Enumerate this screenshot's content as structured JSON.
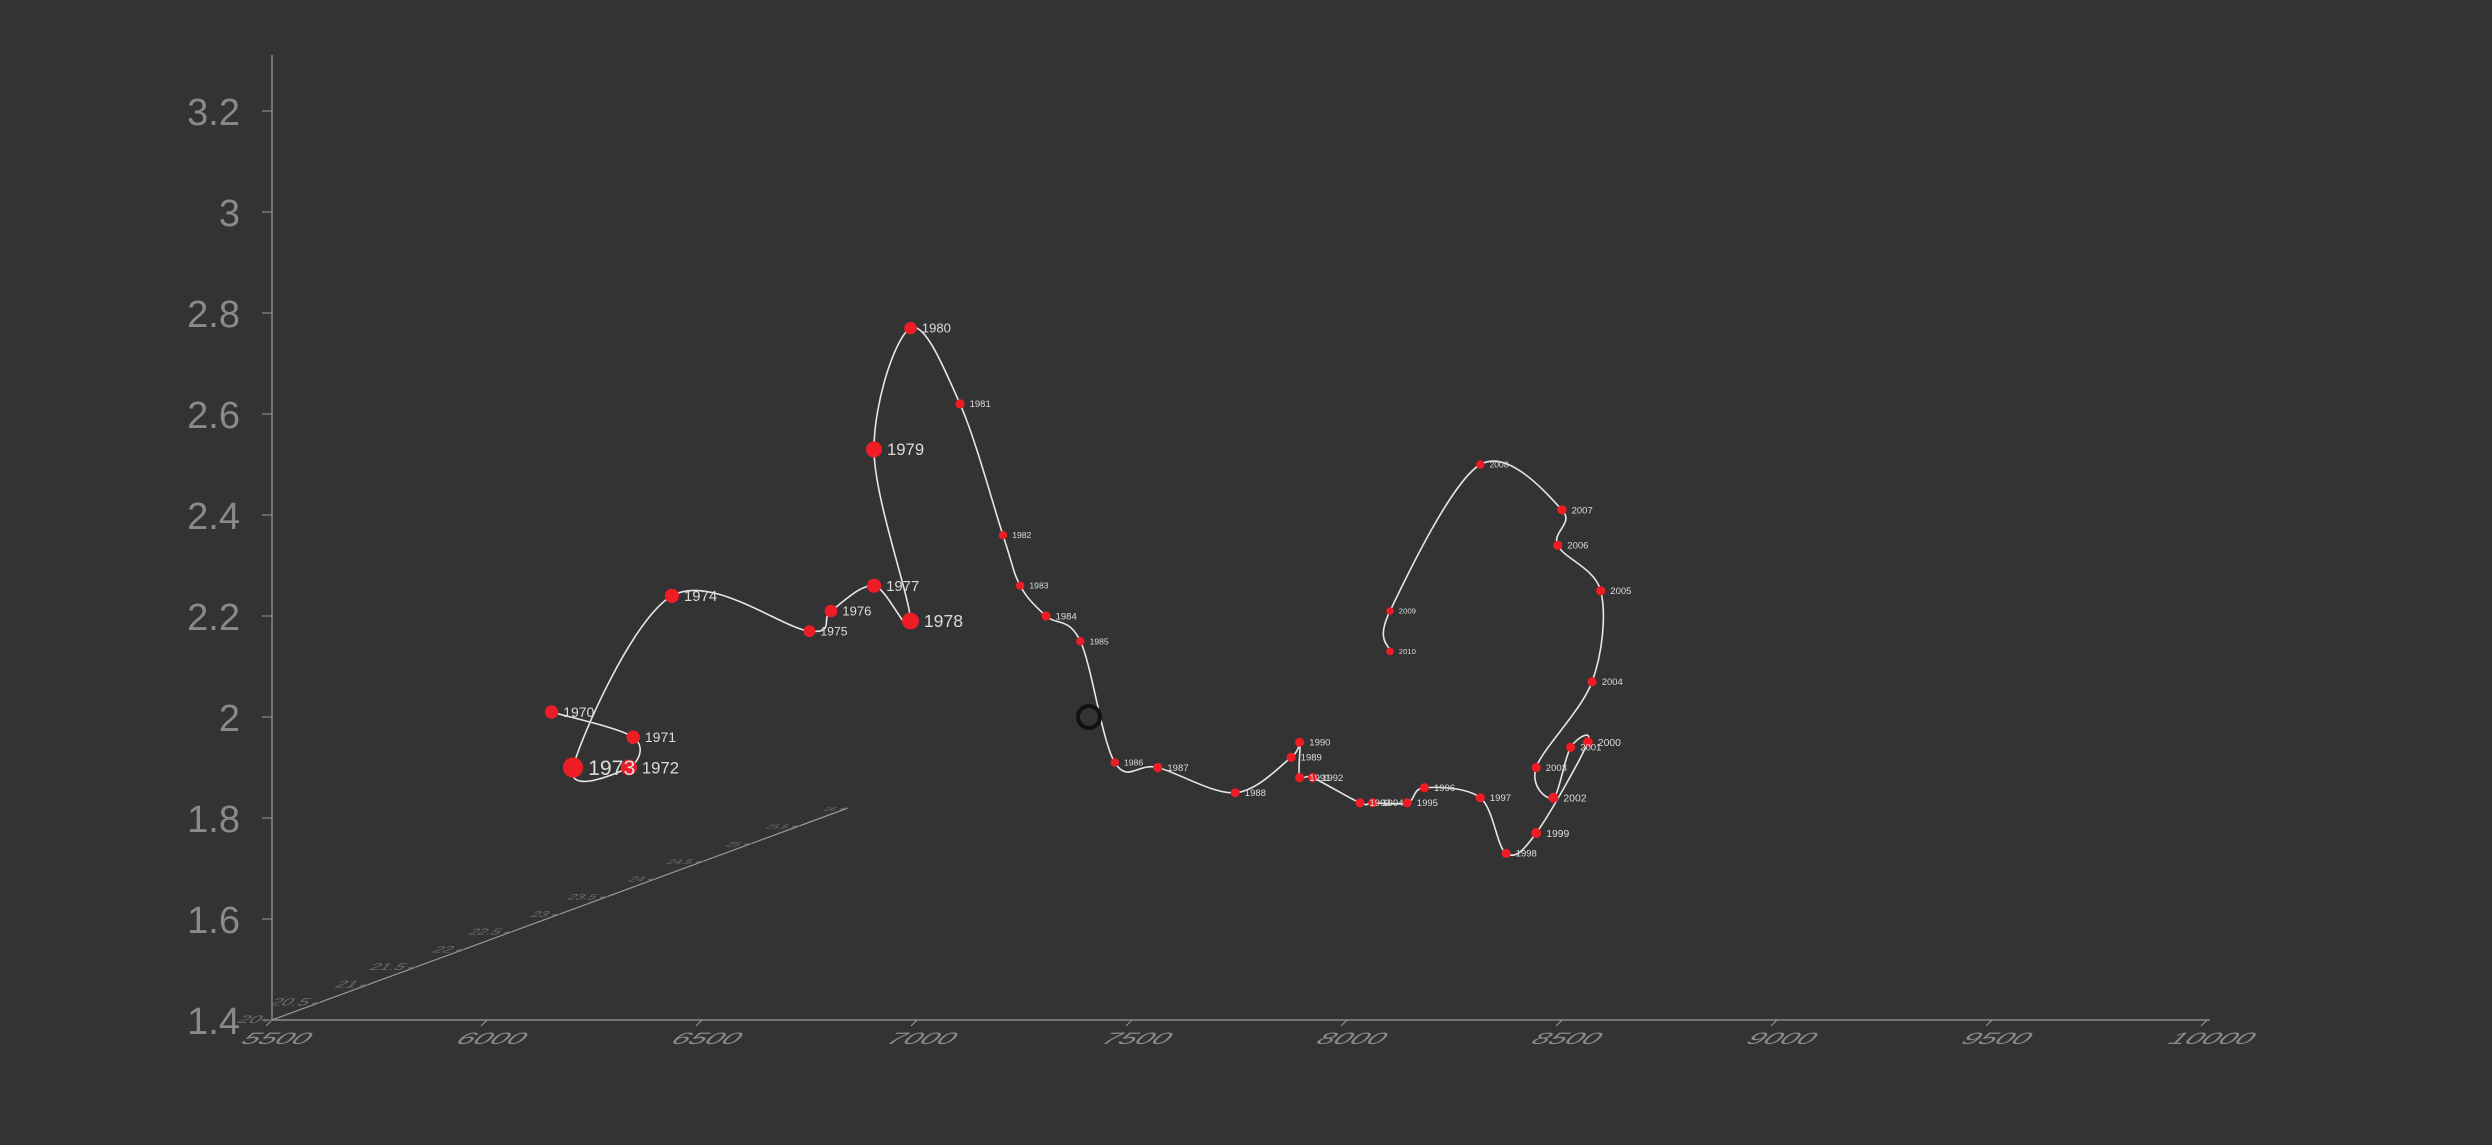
{
  "chart_data": {
    "type": "line",
    "mode": "3d-trajectory",
    "x_axis": {
      "range": [
        5500,
        10000
      ],
      "ticks": [
        {
          "label": "5500",
          "value": 5500
        },
        {
          "label": "6000",
          "value": 6000
        },
        {
          "label": "6500",
          "value": 6500
        },
        {
          "label": "7000",
          "value": 7000
        },
        {
          "label": "7500",
          "value": 7500
        },
        {
          "label": "8000",
          "value": 8000
        },
        {
          "label": "8500",
          "value": 8500
        },
        {
          "label": "9000",
          "value": 9000
        },
        {
          "label": "9500",
          "value": 9500
        },
        {
          "label": "10000",
          "value": 10000
        }
      ]
    },
    "y_axis": {
      "range": [
        1.4,
        3.3
      ],
      "ticks": [
        {
          "label": "1.4",
          "value": 1.4
        },
        {
          "label": "1.6",
          "value": 1.6
        },
        {
          "label": "1.8",
          "value": 1.8
        },
        {
          "label": "2",
          "value": 2.0
        },
        {
          "label": "2.2",
          "value": 2.2
        },
        {
          "label": "2.4",
          "value": 2.4
        },
        {
          "label": "2.6",
          "value": 2.6
        },
        {
          "label": "2.8",
          "value": 2.8
        },
        {
          "label": "3",
          "value": 3.0
        },
        {
          "label": "3.2",
          "value": 3.2
        }
      ]
    },
    "z_axis": {
      "range": [
        20,
        26
      ],
      "ticks": [
        {
          "label": "20",
          "value": 20
        },
        {
          "label": "20.5",
          "value": 20.5
        },
        {
          "label": "21",
          "value": 21
        },
        {
          "label": "21.5",
          "value": 21.5
        },
        {
          "label": "22",
          "value": 22
        },
        {
          "label": "22.5",
          "value": 22.5
        },
        {
          "label": "23",
          "value": 23
        },
        {
          "label": "23.5",
          "value": 23.5
        },
        {
          "label": "24",
          "value": 24
        },
        {
          "label": "24.5",
          "value": 24.5
        },
        {
          "label": "25",
          "value": 25
        },
        {
          "label": "25.5",
          "value": 25.5
        },
        {
          "label": "26",
          "value": 26
        }
      ]
    },
    "grid": false,
    "line_color": "#e6e6e6",
    "marker_color": "#ee1c25",
    "points": [
      {
        "label": "1970",
        "x": 6150,
        "y": 2.01,
        "z": 1.0
      },
      {
        "label": "1971",
        "x": 6340,
        "y": 1.96,
        "z": 1.0
      },
      {
        "label": "1972",
        "x": 6330,
        "y": 1.9,
        "z": 1.3
      },
      {
        "label": "1973",
        "x": 6200,
        "y": 1.9,
        "z": 1.8
      },
      {
        "label": "1974",
        "x": 6430,
        "y": 2.24,
        "z": 1.1
      },
      {
        "label": "1975",
        "x": 6750,
        "y": 2.17,
        "z": 0.8
      },
      {
        "label": "1976",
        "x": 6800,
        "y": 2.21,
        "z": 0.9
      },
      {
        "label": "1977",
        "x": 6900,
        "y": 2.26,
        "z": 1.1
      },
      {
        "label": "1978",
        "x": 6985,
        "y": 2.19,
        "z": 1.4
      },
      {
        "label": "1979",
        "x": 6900,
        "y": 2.53,
        "z": 1.3
      },
      {
        "label": "1980",
        "x": 6985,
        "y": 2.77,
        "z": 0.9
      },
      {
        "label": "1981",
        "x": 7100,
        "y": 2.62,
        "z": 0.5
      },
      {
        "label": "1982",
        "x": 7200,
        "y": 2.36,
        "z": 0.4
      },
      {
        "label": "1983",
        "x": 7240,
        "y": 2.26,
        "z": 0.4
      },
      {
        "label": "1984",
        "x": 7300,
        "y": 2.2,
        "z": 0.5
      },
      {
        "label": "1985",
        "x": 7380,
        "y": 2.15,
        "z": 0.4
      },
      {
        "label": "1986",
        "x": 7460,
        "y": 1.91,
        "z": 0.4
      },
      {
        "label": "1987",
        "x": 7560,
        "y": 1.9,
        "z": 0.5
      },
      {
        "label": "1988",
        "x": 7740,
        "y": 1.85,
        "z": 0.5
      },
      {
        "label": "1989",
        "x": 7870,
        "y": 1.92,
        "z": 0.5
      },
      {
        "label": "1990",
        "x": 7890,
        "y": 1.95,
        "z": 0.5
      },
      {
        "label": "1991",
        "x": 7890,
        "y": 1.88,
        "z": 0.5
      },
      {
        "label": "1992",
        "x": 7920,
        "y": 1.88,
        "z": 0.5
      },
      {
        "label": "1993",
        "x": 8030,
        "y": 1.83,
        "z": 0.5
      },
      {
        "label": "1994",
        "x": 8060,
        "y": 1.83,
        "z": 0.5
      },
      {
        "label": "1995",
        "x": 8140,
        "y": 1.83,
        "z": 0.5
      },
      {
        "label": "1996",
        "x": 8180,
        "y": 1.86,
        "z": 0.5
      },
      {
        "label": "1997",
        "x": 8310,
        "y": 1.84,
        "z": 0.5
      },
      {
        "label": "1998",
        "x": 8370,
        "y": 1.73,
        "z": 0.5
      },
      {
        "label": "1999",
        "x": 8440,
        "y": 1.77,
        "z": 0.6
      },
      {
        "label": "2000",
        "x": 8560,
        "y": 1.95,
        "z": 0.6
      },
      {
        "label": "2001",
        "x": 8520,
        "y": 1.94,
        "z": 0.5
      },
      {
        "label": "2002",
        "x": 8480,
        "y": 1.84,
        "z": 0.6
      },
      {
        "label": "2003",
        "x": 8440,
        "y": 1.9,
        "z": 0.5
      },
      {
        "label": "2004",
        "x": 8570,
        "y": 2.07,
        "z": 0.5
      },
      {
        "label": "2005",
        "x": 8590,
        "y": 2.25,
        "z": 0.5
      },
      {
        "label": "2006",
        "x": 8490,
        "y": 2.34,
        "z": 0.5
      },
      {
        "label": "2007",
        "x": 8500,
        "y": 2.41,
        "z": 0.5
      },
      {
        "label": "2008",
        "x": 8310,
        "y": 2.5,
        "z": 0.4
      },
      {
        "label": "2009",
        "x": 8100,
        "y": 2.21,
        "z": 0.3
      },
      {
        "label": "2010",
        "x": 8100,
        "y": 2.13,
        "z": 0.3
      }
    ],
    "cursor": {
      "x": 7400,
      "y": 2.0
    }
  }
}
